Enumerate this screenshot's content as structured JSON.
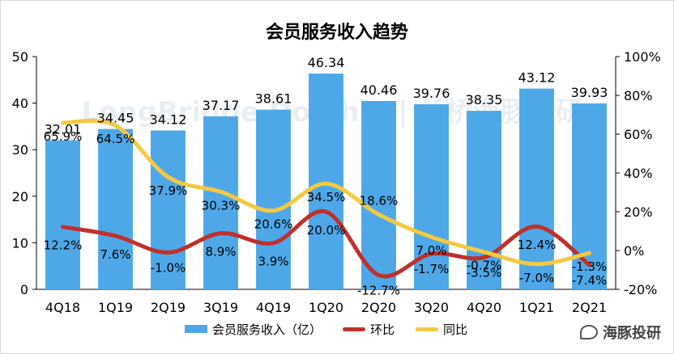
{
  "chart_data": {
    "type": "bar",
    "title": "会员服务收入趋势",
    "categories": [
      "4Q18",
      "1Q19",
      "2Q19",
      "3Q19",
      "4Q19",
      "1Q20",
      "2Q20",
      "3Q20",
      "4Q20",
      "1Q21",
      "2Q21"
    ],
    "ylim_left": [
      0,
      50
    ],
    "yticks_left": [
      "0",
      "10",
      "20",
      "30",
      "40",
      "50"
    ],
    "ylim_right": [
      -20,
      100
    ],
    "yticks_right": [
      "-20%",
      "0%",
      "20%",
      "40%",
      "60%",
      "80%",
      "100%"
    ],
    "grid": false,
    "legend_position": "bottom",
    "series": [
      {
        "name": "会员服务收入（亿）",
        "type": "bar",
        "axis": "left",
        "color": "#4ea8e8",
        "values": [
          32.01,
          34.45,
          34.12,
          37.17,
          38.61,
          46.34,
          40.46,
          39.76,
          38.35,
          43.12,
          39.93
        ],
        "labels": [
          "32.01",
          "34.45",
          "34.12",
          "37.17",
          "38.61",
          "46.34",
          "40.46",
          "39.76",
          "38.35",
          "43.12",
          "39.93"
        ]
      },
      {
        "name": "环比",
        "type": "line",
        "axis": "right",
        "color": "#c0302b",
        "values": [
          12.2,
          7.6,
          -1.0,
          8.9,
          3.9,
          20.0,
          -12.7,
          -1.7,
          -3.5,
          12.4,
          -7.4
        ],
        "labels": [
          "12.2%",
          "7.6%",
          "-1.0%",
          "8.9%",
          "3.9%",
          "20.0%",
          "-12.7%",
          "-1.7%",
          "-3.5%",
          "12.4%",
          "-7.4%"
        ]
      },
      {
        "name": "同比",
        "type": "line",
        "axis": "right",
        "color": "#f5c842",
        "values": [
          65.9,
          64.5,
          37.9,
          30.3,
          20.6,
          34.5,
          18.6,
          7.0,
          -0.7,
          -7.0,
          -1.3
        ],
        "labels": [
          "65.9%",
          "64.5%",
          "37.9%",
          "30.3%",
          "20.6%",
          "34.5%",
          "18.6%",
          "7.0%",
          "-0.7%",
          "-7.0%",
          "-1.3%"
        ]
      }
    ]
  },
  "watermark": "LongBridge Dolphin | 长桥海豚投研",
  "brand_badge": "海豚投研",
  "colors": {
    "bar": "#4ea8e8",
    "mom": "#c0302b",
    "yoy": "#f5c842"
  }
}
